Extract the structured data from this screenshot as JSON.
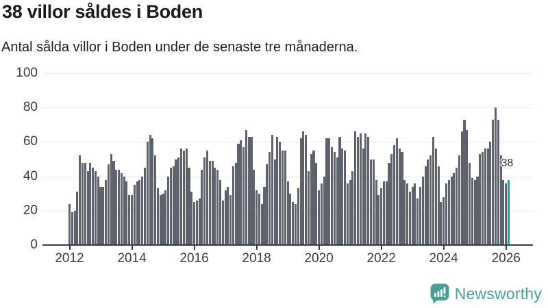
{
  "header": {
    "title": "38 villor såldes i Boden",
    "subtitle": "Antal sålda villor i Boden under de senaste tre månaderna."
  },
  "chart_data": {
    "type": "bar",
    "title": "38 villor såldes i Boden",
    "subtitle": "Antal sålda villor i Boden under de senaste tre månaderna.",
    "xlabel": "",
    "ylabel": "",
    "grid": true,
    "legend": "none",
    "ylim": [
      0,
      100
    ],
    "y_ticks": [
      0,
      20,
      40,
      60,
      80,
      100
    ],
    "x_tick_labels": [
      "2012",
      "2014",
      "2016",
      "2018",
      "2020",
      "2022",
      "2024",
      "2026"
    ],
    "x_start_year": 2012,
    "bars_per_year": 12,
    "values": [
      24,
      19,
      20,
      31,
      52,
      48,
      48,
      43,
      48,
      45,
      43,
      40,
      34,
      34,
      38,
      47,
      53,
      49,
      44,
      44,
      42,
      40,
      37,
      29,
      29,
      35,
      37,
      38,
      40,
      45,
      60,
      64,
      62,
      52,
      33,
      29,
      30,
      32,
      40,
      45,
      46,
      50,
      51,
      56,
      55,
      56,
      45,
      31,
      25,
      26,
      27,
      44,
      51,
      55,
      49,
      49,
      45,
      44,
      38,
      26,
      32,
      34,
      29,
      46,
      48,
      59,
      61,
      57,
      67,
      63,
      63,
      44,
      32,
      30,
      24,
      34,
      47,
      54,
      64,
      50,
      63,
      60,
      55,
      55,
      37,
      30,
      25,
      24,
      33,
      62,
      66,
      64,
      43,
      53,
      55,
      48,
      32,
      36,
      40,
      62,
      62,
      57,
      54,
      51,
      63,
      56,
      55,
      36,
      38,
      43,
      66,
      63,
      65,
      56,
      65,
      63,
      50,
      50,
      38,
      29,
      33,
      37,
      37,
      48,
      53,
      58,
      62,
      56,
      54,
      38,
      36,
      31,
      34,
      36,
      27,
      34,
      40,
      46,
      50,
      52,
      63,
      56,
      46,
      25,
      28,
      36,
      38,
      40,
      42,
      45,
      52,
      66,
      73,
      67,
      48,
      39,
      38,
      40,
      53,
      54,
      56,
      56,
      60,
      73,
      80,
      73,
      52,
      38,
      36,
      38
    ],
    "highlight": {
      "index": 169,
      "value": 38,
      "label": "38"
    },
    "colors": {
      "bar": "#5e626c",
      "highlight": "#00a3ab",
      "gridline": "#eaeaea",
      "axis": "#3d3d3d"
    }
  },
  "footer": {
    "brand": "Newsworthy",
    "brand_color": "#47a096",
    "logo_icon": "bar-chart-speech-bubble-icon"
  }
}
